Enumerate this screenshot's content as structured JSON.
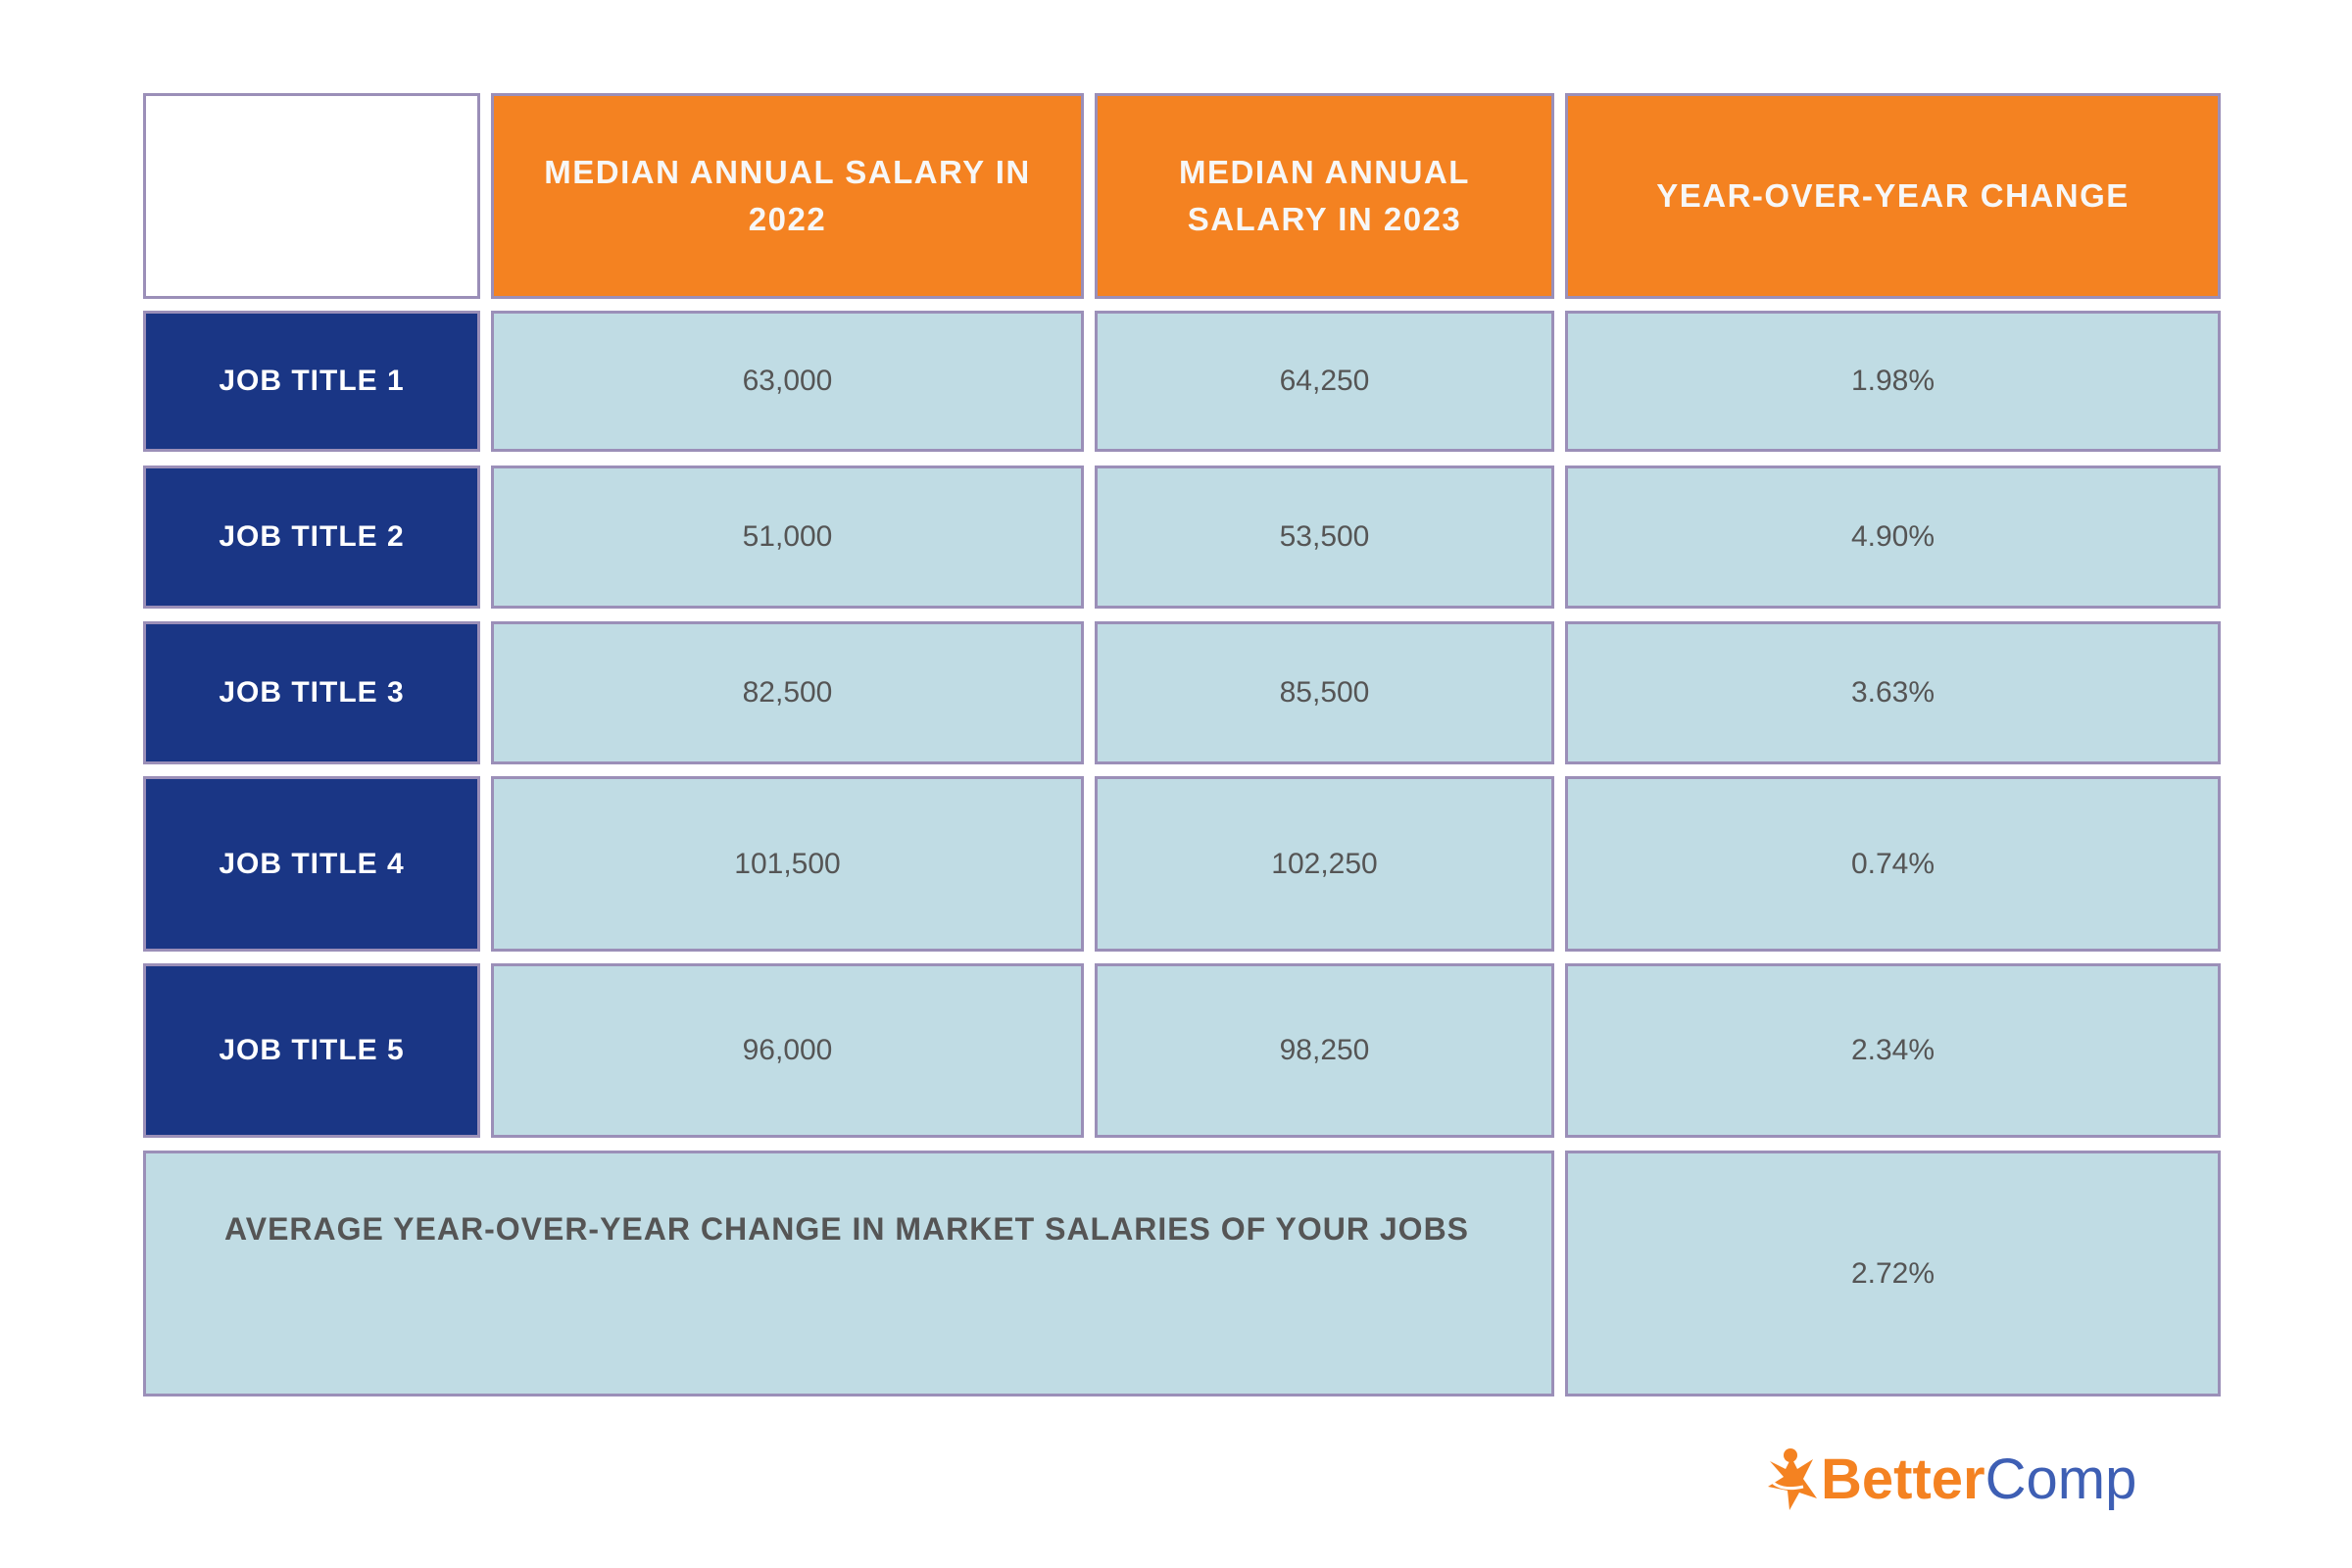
{
  "table": {
    "headers": [
      "",
      "MEDIAN ANNUAL SALARY IN 2022",
      "MEDIAN ANNUAL SALARY IN 2023",
      "YEAR-OVER-YEAR CHANGE"
    ],
    "rows": [
      {
        "title": "JOB TITLE 1",
        "salary_2022": "63,000",
        "salary_2023": "64,250",
        "change": "1.98%"
      },
      {
        "title": "JOB TITLE 2",
        "salary_2022": "51,000",
        "salary_2023": "53,500",
        "change": "4.90%"
      },
      {
        "title": "JOB TITLE 3",
        "salary_2022": "82,500",
        "salary_2023": "85,500",
        "change": "3.63%"
      },
      {
        "title": "JOB TITLE 4",
        "salary_2022": "101,500",
        "salary_2023": "102,250",
        "change": "0.74%"
      },
      {
        "title": "JOB TITLE 5",
        "salary_2022": "96,000",
        "salary_2023": "98,250",
        "change": "2.34%"
      }
    ],
    "summary": {
      "label": "AVERAGE YEAR-OVER-YEAR CHANGE IN MARKET SALARIES OF YOUR JOBS",
      "value": "2.72%"
    }
  },
  "logo": {
    "part1": "Better",
    "part2": "Comp"
  },
  "colors": {
    "header": "#f48221",
    "row_title": "#1a3685",
    "cell": "#c0dce4",
    "border": "#9b8fb8",
    "logo_orange": "#f48221",
    "logo_blue": "#3e5fb4"
  }
}
